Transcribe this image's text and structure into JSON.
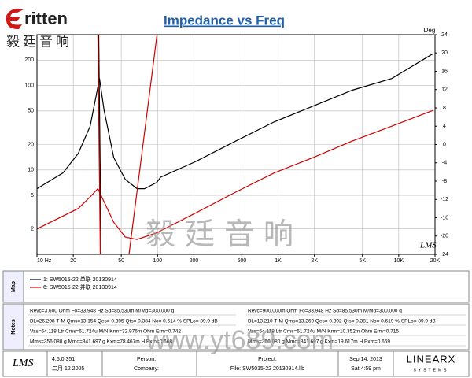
{
  "logo": "ritten",
  "logo_cn": "毅廷音响",
  "chart_data": {
    "type": "line",
    "title": "Impedance vs Freq",
    "y2_label": "Deg",
    "corner_mark": "LMS",
    "xlim": [
      10,
      20000
    ],
    "log_x": true,
    "xticks": [
      {
        "value": 10,
        "label": "10 Hz"
      },
      20,
      50,
      100,
      200,
      500,
      {
        "value": 1000,
        "label": "1K"
      },
      {
        "value": 2000,
        "label": "2K"
      },
      {
        "value": 5000,
        "label": "5K"
      },
      {
        "value": 10000,
        "label": "10K"
      },
      {
        "value": 20000,
        "label": "20K"
      }
    ],
    "ylim": [
      1,
      400
    ],
    "log_y": true,
    "yticks": [
      2,
      5,
      10,
      20,
      50,
      100,
      200
    ],
    "y2lim": [
      -24,
      24
    ],
    "y2ticks": [
      -24,
      -20,
      -16,
      -12,
      -8,
      -4,
      0,
      4,
      8,
      12,
      16,
      20,
      24
    ],
    "grid": true,
    "series": [
      {
        "name": "1: SW5015-22 单联 20130914",
        "color": "#000000",
        "x": [
          10,
          16.4,
          22,
          27.6,
          33,
          36,
          43.3,
          54,
          67.7,
          78,
          98.6,
          106,
          208,
          437,
          924,
          1950,
          4120,
          8760,
          19400
        ],
        "values": [
          6,
          9.2,
          15.7,
          33,
          121,
          51,
          14,
          7.7,
          6,
          6,
          7.1,
          8.2,
          12.6,
          21.7,
          37,
          57,
          88,
          121,
          240
        ]
      },
      {
        "name": "6: SW5015-22 并联 20130914",
        "color": "#d00000",
        "x": [
          10,
          22,
          27.6,
          32,
          36,
          43.3,
          54,
          67.7,
          98.6,
          208,
          437,
          924,
          1950,
          4120,
          8760,
          19400
        ],
        "values": [
          2,
          3.5,
          4.8,
          6,
          4.2,
          2.4,
          1.6,
          1.5,
          1.8,
          3.1,
          5.4,
          9.2,
          14,
          22,
          33,
          51
        ]
      },
      {
        "color": "#000000",
        "axis": "y2",
        "x": [
          32.5,
          34
        ],
        "values": [
          24,
          -24
        ]
      },
      {
        "color": "#d00000",
        "axis": "y2",
        "x": [
          32,
          33.5,
          45,
          58,
          99
        ],
        "values": [
          24,
          -24,
          null,
          -24,
          24
        ]
      }
    ]
  },
  "legend_panel": {
    "label": "Map"
  },
  "notes_panel": {
    "label": "Notes",
    "left": [
      "Revc=3.600 Ohm  Fo=33.948 Hz  Sd=85.530m M/Md=300.000 g",
      "BL=26.298 T·M  Qms=13.154  Qes= 0.395  Qts= 0.384  No= 0.614 %  SPLo= 89.9 dB",
      "Vas=64.118 Ltr  Cms=61.724u M/N  Krm=32.976m Ohm  Erm=0.742",
      "Mms=356.080 g  Mmd=341.697 g  Kxm=78.467m H  Exm=0.668"
    ],
    "right": [
      "Revc=900.000m Ohm  Fo=33.948 Hz  Sd=85.530m M/Md=300.000 g",
      "BL=13.210 T·M  Qms=13.269  Qes= 0.392  Qts= 0.381  No= 0.619 %  SPLo= 89.9 dB",
      "Vas=64.118 Ltr  Cms=61.724u M/N  Krm=10.352m Ohm  Erm=0.715",
      "Mms=356.080 g  Mmd=341.697 g  Kxm=19.617m H  Exm=0.669"
    ]
  },
  "footer": {
    "logo": "LMS",
    "version": "4.5.0.351",
    "build_date": "二月 12 2005",
    "person": "Person:",
    "company": "Company:",
    "project": "Project:",
    "file": "File: SW5015-22 20130914.lib",
    "date": "Sep 14, 2013",
    "time": "Sat  4:59 pm",
    "brand": "LINEARX",
    "brand_sub": "SYSTEMS"
  },
  "watermarks": [
    "毅廷音响",
    "www.yt689.com"
  ]
}
